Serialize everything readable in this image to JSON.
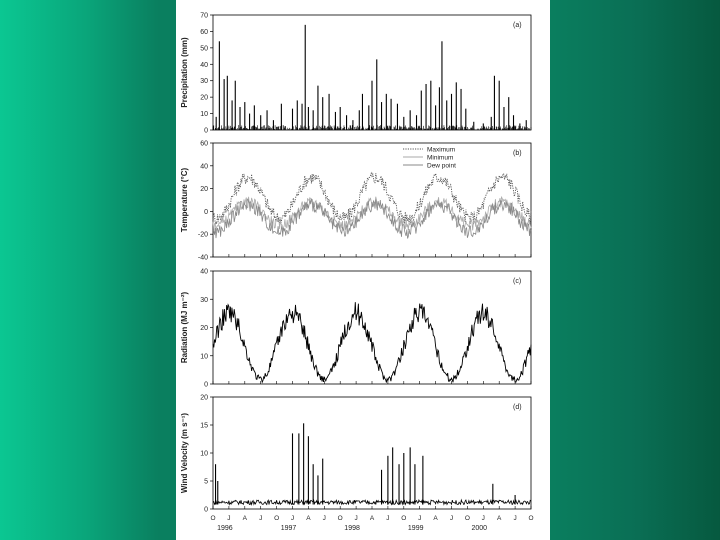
{
  "background": {
    "left_color": "#0bc792",
    "right_color": "#06593f",
    "panel_color": "#ffffff"
  },
  "chart_data": [
    {
      "type": "bar",
      "panel_label": "(a)",
      "ylabel": "Precipitation (mm)",
      "ylim": [
        0,
        70
      ],
      "yticks": [
        0,
        10,
        20,
        30,
        40,
        50,
        60,
        70
      ],
      "series_color": "#000000",
      "spikes": [
        {
          "t": 0.01,
          "v": 8
        },
        {
          "t": 0.02,
          "v": 54
        },
        {
          "t": 0.035,
          "v": 31
        },
        {
          "t": 0.045,
          "v": 33
        },
        {
          "t": 0.06,
          "v": 18
        },
        {
          "t": 0.07,
          "v": 30
        },
        {
          "t": 0.085,
          "v": 14
        },
        {
          "t": 0.1,
          "v": 17
        },
        {
          "t": 0.115,
          "v": 10
        },
        {
          "t": 0.13,
          "v": 15
        },
        {
          "t": 0.15,
          "v": 9
        },
        {
          "t": 0.17,
          "v": 12
        },
        {
          "t": 0.19,
          "v": 6
        },
        {
          "t": 0.215,
          "v": 16
        },
        {
          "t": 0.25,
          "v": 13
        },
        {
          "t": 0.265,
          "v": 18
        },
        {
          "t": 0.28,
          "v": 16
        },
        {
          "t": 0.29,
          "v": 64
        },
        {
          "t": 0.3,
          "v": 14
        },
        {
          "t": 0.315,
          "v": 12
        },
        {
          "t": 0.33,
          "v": 27
        },
        {
          "t": 0.345,
          "v": 20
        },
        {
          "t": 0.365,
          "v": 22
        },
        {
          "t": 0.385,
          "v": 11
        },
        {
          "t": 0.4,
          "v": 14
        },
        {
          "t": 0.42,
          "v": 9
        },
        {
          "t": 0.44,
          "v": 6
        },
        {
          "t": 0.46,
          "v": 12
        },
        {
          "t": 0.47,
          "v": 22
        },
        {
          "t": 0.49,
          "v": 15
        },
        {
          "t": 0.5,
          "v": 30
        },
        {
          "t": 0.515,
          "v": 43
        },
        {
          "t": 0.53,
          "v": 17
        },
        {
          "t": 0.545,
          "v": 22
        },
        {
          "t": 0.56,
          "v": 19
        },
        {
          "t": 0.58,
          "v": 16
        },
        {
          "t": 0.6,
          "v": 8
        },
        {
          "t": 0.62,
          "v": 12
        },
        {
          "t": 0.64,
          "v": 9
        },
        {
          "t": 0.655,
          "v": 24
        },
        {
          "t": 0.67,
          "v": 28
        },
        {
          "t": 0.685,
          "v": 30
        },
        {
          "t": 0.7,
          "v": 15
        },
        {
          "t": 0.712,
          "v": 26
        },
        {
          "t": 0.72,
          "v": 54
        },
        {
          "t": 0.735,
          "v": 18
        },
        {
          "t": 0.75,
          "v": 22
        },
        {
          "t": 0.765,
          "v": 29
        },
        {
          "t": 0.78,
          "v": 25
        },
        {
          "t": 0.795,
          "v": 13
        },
        {
          "t": 0.82,
          "v": 5
        },
        {
          "t": 0.85,
          "v": 4
        },
        {
          "t": 0.875,
          "v": 8
        },
        {
          "t": 0.885,
          "v": 33
        },
        {
          "t": 0.9,
          "v": 30
        },
        {
          "t": 0.915,
          "v": 14
        },
        {
          "t": 0.93,
          "v": 20
        },
        {
          "t": 0.945,
          "v": 9
        },
        {
          "t": 0.965,
          "v": 4
        },
        {
          "t": 0.985,
          "v": 6
        }
      ],
      "baseline_noise_max": 3
    },
    {
      "type": "line",
      "panel_label": "(b)",
      "ylabel": "Temperature (°C)",
      "ylim": [
        -40,
        60
      ],
      "yticks": [
        -40,
        -20,
        0,
        20,
        40,
        60
      ],
      "legend": [
        "Maximum",
        "Minimum",
        "Dew point"
      ],
      "legend_position": "top-right",
      "series": [
        {
          "name": "Maximum",
          "color": "#555555",
          "style": "dotted",
          "mean": 12,
          "amplitude": 18,
          "noise": 6,
          "phase_peak": 0.55
        },
        {
          "name": "Minimum",
          "color": "#aaaaaa",
          "style": "solid",
          "mean": -2,
          "amplitude": 10,
          "noise": 5,
          "phase_peak": 0.55
        },
        {
          "name": "Dew point",
          "color": "#888888",
          "style": "solid",
          "mean": -6,
          "amplitude": 12,
          "noise": 6,
          "phase_peak": 0.55
        }
      ]
    },
    {
      "type": "line",
      "panel_label": "(c)",
      "ylabel": "Radiation (MJ m⁻²)",
      "ylim": [
        0,
        40
      ],
      "yticks": [
        0,
        10,
        20,
        30,
        40
      ],
      "series": [
        {
          "name": "",
          "color": "#000000",
          "mean": 16,
          "amplitude": 13,
          "noise": 4,
          "phase_peak": 0.45
        }
      ]
    },
    {
      "type": "line",
      "panel_label": "(d)",
      "ylabel": "Wind Velocity (m s⁻¹)",
      "ylim": [
        0,
        20
      ],
      "yticks": [
        0,
        5,
        10,
        15,
        20
      ],
      "series": [
        {
          "name": "",
          "color": "#000000",
          "base": 0.8
        }
      ],
      "spikes": [
        {
          "t": 0.008,
          "v": 8
        },
        {
          "t": 0.015,
          "v": 5
        },
        {
          "t": 0.25,
          "v": 13.5
        },
        {
          "t": 0.27,
          "v": 13.5
        },
        {
          "t": 0.285,
          "v": 15.3
        },
        {
          "t": 0.3,
          "v": 13
        },
        {
          "t": 0.315,
          "v": 8
        },
        {
          "t": 0.33,
          "v": 6
        },
        {
          "t": 0.345,
          "v": 9
        },
        {
          "t": 0.53,
          "v": 7
        },
        {
          "t": 0.55,
          "v": 9.5
        },
        {
          "t": 0.565,
          "v": 11
        },
        {
          "t": 0.585,
          "v": 8
        },
        {
          "t": 0.6,
          "v": 10
        },
        {
          "t": 0.62,
          "v": 11
        },
        {
          "t": 0.635,
          "v": 8
        },
        {
          "t": 0.66,
          "v": 9.5
        },
        {
          "t": 0.88,
          "v": 4.5
        },
        {
          "t": 0.95,
          "v": 2.5
        }
      ],
      "x_month_ticks": [
        "O",
        "J",
        "A",
        "J",
        "O",
        "J",
        "A",
        "J",
        "O",
        "J",
        "A",
        "J",
        "O",
        "J",
        "A",
        "J",
        "O",
        "J",
        "A",
        "J",
        "O"
      ],
      "x_year_labels": [
        "1996",
        "1997",
        "1998",
        "1999",
        "2000"
      ]
    }
  ]
}
